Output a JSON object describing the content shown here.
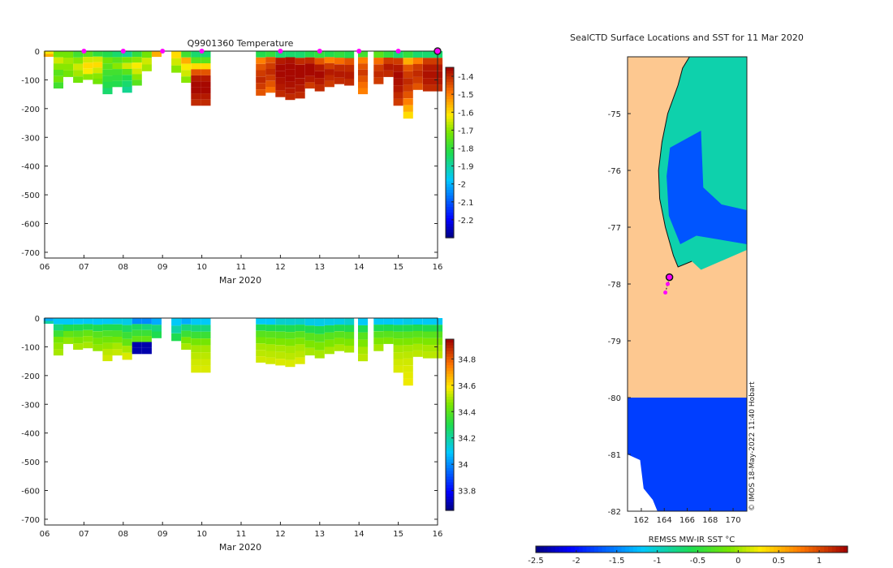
{
  "chart_data": [
    {
      "type": "heatmap",
      "title": "Q9901360  Temperature",
      "xlabel": "Mar 2020",
      "x_ticks": [
        "06",
        "07",
        "08",
        "09",
        "10",
        "11",
        "12",
        "13",
        "14",
        "15",
        "16"
      ],
      "xlim": [
        6,
        16
      ],
      "ylim": [
        -720,
        0
      ],
      "y_ticks": [
        0,
        -100,
        -200,
        -300,
        -400,
        -500,
        -600,
        -700
      ],
      "colorbar": {
        "min": -2.3,
        "max": -1.35,
        "ticks": [
          -1.4,
          -1.5,
          -1.6,
          -1.7,
          -1.8,
          -1.9,
          -2,
          -2.1,
          -2.2
        ]
      },
      "surface_markers": [
        7,
        8,
        9,
        10,
        12,
        13,
        14,
        15
      ],
      "last_marker": 16,
      "profiles": [
        {
          "day": 6.1,
          "depth": 20,
          "values": [
            -1.62,
            -1.55
          ]
        },
        {
          "day": 6.35,
          "depth": 130,
          "values": [
            -1.72,
            -1.65,
            -1.7,
            -1.75,
            -1.72,
            -1.78
          ]
        },
        {
          "day": 6.6,
          "depth": 90,
          "values": [
            -1.72,
            -1.68,
            -1.7,
            -1.72
          ]
        },
        {
          "day": 6.85,
          "depth": 110,
          "values": [
            -1.78,
            -1.7,
            -1.65,
            -1.68,
            -1.72
          ]
        },
        {
          "day": 7.1,
          "depth": 100,
          "values": [
            -1.75,
            -1.65,
            -1.6,
            -1.62,
            -1.7
          ]
        },
        {
          "day": 7.35,
          "depth": 115,
          "values": [
            -1.8,
            -1.65,
            -1.6,
            -1.65,
            -1.7,
            -1.72
          ]
        },
        {
          "day": 7.6,
          "depth": 150,
          "values": [
            -1.82,
            -1.72,
            -1.75,
            -1.78,
            -1.8,
            -1.82,
            -1.85
          ]
        },
        {
          "day": 7.85,
          "depth": 125,
          "values": [
            -1.85,
            -1.75,
            -1.7,
            -1.78,
            -1.8,
            -1.82
          ]
        },
        {
          "day": 8.1,
          "depth": 145,
          "values": [
            -1.88,
            -1.72,
            -1.65,
            -1.75,
            -1.82,
            -1.85,
            -1.88
          ]
        },
        {
          "day": 8.35,
          "depth": 120,
          "values": [
            -1.8,
            -1.7,
            -1.62,
            -1.65,
            -1.7,
            -1.75
          ]
        },
        {
          "day": 8.6,
          "depth": 70,
          "values": [
            -1.72,
            -1.65,
            -1.68
          ]
        },
        {
          "day": 8.85,
          "depth": 20,
          "values": [
            -1.55
          ]
        },
        {
          "day": 9.35,
          "depth": 75,
          "values": [
            -1.6,
            -1.65,
            -1.7
          ]
        },
        {
          "day": 9.6,
          "depth": 110,
          "values": [
            -1.78,
            -1.55,
            -1.62,
            -1.65,
            -1.7
          ]
        },
        {
          "day": 9.85,
          "depth": 190,
          "values": [
            -1.85,
            -1.75,
            -1.6,
            -1.45,
            -1.38,
            -1.36,
            -1.36,
            -1.38,
            -1.4
          ]
        },
        {
          "day": 10.1,
          "depth": 190,
          "values": [
            -1.85,
            -1.75,
            -1.6,
            -1.45,
            -1.38,
            -1.36,
            -1.36,
            -1.38,
            -1.4
          ]
        },
        {
          "day": 11.5,
          "depth": 155,
          "values": [
            -1.82,
            -1.5,
            -1.45,
            -1.42,
            -1.4,
            -1.42,
            -1.45
          ]
        },
        {
          "day": 11.75,
          "depth": 145,
          "values": [
            -1.8,
            -1.45,
            -1.42,
            -1.4,
            -1.42,
            -1.45,
            -1.48
          ]
        },
        {
          "day": 12.0,
          "depth": 160,
          "values": [
            -1.85,
            -1.38,
            -1.36,
            -1.36,
            -1.37,
            -1.38,
            -1.4
          ]
        },
        {
          "day": 12.25,
          "depth": 170,
          "values": [
            -1.85,
            -1.37,
            -1.36,
            -1.36,
            -1.36,
            -1.37,
            -1.38,
            -1.4
          ]
        },
        {
          "day": 12.5,
          "depth": 165,
          "values": [
            -1.85,
            -1.4,
            -1.36,
            -1.36,
            -1.37,
            -1.38,
            -1.4
          ]
        },
        {
          "day": 12.75,
          "depth": 130,
          "values": [
            -1.82,
            -1.4,
            -1.36,
            -1.36,
            -1.38,
            -1.42
          ]
        },
        {
          "day": 13.0,
          "depth": 140,
          "values": [
            -1.8,
            -1.45,
            -1.38,
            -1.36,
            -1.38,
            -1.4
          ]
        },
        {
          "day": 13.25,
          "depth": 125,
          "values": [
            -1.82,
            -1.5,
            -1.42,
            -1.38,
            -1.4,
            -1.42
          ]
        },
        {
          "day": 13.5,
          "depth": 115,
          "values": [
            -1.8,
            -1.48,
            -1.4,
            -1.38,
            -1.4
          ]
        },
        {
          "day": 13.75,
          "depth": 120,
          "values": [
            -1.82,
            -1.45,
            -1.4,
            -1.38,
            -1.4
          ]
        },
        {
          "day": 14.1,
          "depth": 150,
          "values": [
            -1.78,
            -1.5,
            -1.45,
            -1.42,
            -1.45,
            -1.48,
            -1.5
          ]
        },
        {
          "day": 14.5,
          "depth": 115,
          "values": [
            -1.75,
            -1.48,
            -1.42,
            -1.4,
            -1.42
          ]
        },
        {
          "day": 14.75,
          "depth": 90,
          "values": [
            -1.8,
            -1.42,
            -1.38,
            -1.4
          ]
        },
        {
          "day": 15.0,
          "depth": 190,
          "values": [
            -1.85,
            -1.42,
            -1.38,
            -1.36,
            -1.37,
            -1.38,
            -1.4,
            -1.42
          ]
        },
        {
          "day": 15.25,
          "depth": 235,
          "values": [
            -1.8,
            -1.55,
            -1.45,
            -1.42,
            -1.4,
            -1.42,
            -1.45,
            -1.5,
            -1.55,
            -1.6
          ]
        },
        {
          "day": 15.5,
          "depth": 135,
          "values": [
            -1.85,
            -1.5,
            -1.42,
            -1.4,
            -1.42,
            -1.45
          ]
        },
        {
          "day": 15.75,
          "depth": 140,
          "values": [
            -1.85,
            -1.42,
            -1.38,
            -1.37,
            -1.38,
            -1.4
          ]
        },
        {
          "day": 16.0,
          "depth": 140,
          "values": [
            -1.85,
            -1.42,
            -1.38,
            -1.37,
            -1.38,
            -1.4
          ]
        }
      ]
    },
    {
      "type": "heatmap",
      "title": "",
      "xlabel": "Mar 2020",
      "x_ticks": [
        "06",
        "07",
        "08",
        "09",
        "10",
        "11",
        "12",
        "13",
        "14",
        "15",
        "16"
      ],
      "xlim": [
        6,
        16
      ],
      "ylim": [
        -720,
        0
      ],
      "y_ticks": [
        0,
        -100,
        -200,
        -300,
        -400,
        -500,
        -600,
        -700
      ],
      "colorbar": {
        "min": 33.65,
        "max": 34.95,
        "ticks": [
          34.8,
          34.6,
          34.4,
          34.2,
          34,
          33.8
        ]
      },
      "profiles": [
        {
          "day": 6.1,
          "depth": 20,
          "values": [
            34.05,
            34.2
          ]
        },
        {
          "day": 6.35,
          "depth": 130,
          "values": [
            34.1,
            34.25,
            34.35,
            34.45,
            34.48,
            34.5
          ]
        },
        {
          "day": 6.6,
          "depth": 90,
          "values": [
            34.1,
            34.3,
            34.42,
            34.48
          ]
        },
        {
          "day": 6.85,
          "depth": 110,
          "values": [
            34.1,
            34.3,
            34.4,
            34.46,
            34.5
          ]
        },
        {
          "day": 7.1,
          "depth": 105,
          "values": [
            34.1,
            34.3,
            34.42,
            34.47,
            34.5
          ]
        },
        {
          "day": 7.35,
          "depth": 115,
          "values": [
            34.1,
            34.3,
            34.4,
            34.45,
            34.48
          ]
        },
        {
          "day": 7.6,
          "depth": 150,
          "values": [
            34.1,
            34.3,
            34.38,
            34.44,
            34.48,
            34.52,
            34.54
          ]
        },
        {
          "day": 7.85,
          "depth": 130,
          "values": [
            34.12,
            34.3,
            34.38,
            34.45,
            34.5,
            34.53
          ]
        },
        {
          "day": 8.1,
          "depth": 145,
          "values": [
            34.12,
            34.28,
            34.35,
            34.42,
            34.5,
            34.55
          ]
        },
        {
          "day": 8.35,
          "depth": 125,
          "values": [
            34.0,
            34.28,
            34.35,
            34.42,
            33.7,
            33.7
          ]
        },
        {
          "day": 8.6,
          "depth": 125,
          "values": [
            34.0,
            34.25,
            34.35,
            34.42,
            33.7,
            33.7
          ]
        },
        {
          "day": 8.85,
          "depth": 70,
          "values": [
            34.05,
            34.25,
            34.3
          ]
        },
        {
          "day": 9.35,
          "depth": 80,
          "values": [
            34.1,
            34.2,
            34.3
          ]
        },
        {
          "day": 9.6,
          "depth": 110,
          "values": [
            34.05,
            34.25,
            34.35,
            34.45,
            34.5
          ]
        },
        {
          "day": 9.85,
          "depth": 190,
          "values": [
            34.1,
            34.25,
            34.35,
            34.45,
            34.5,
            34.52,
            34.54,
            34.55
          ]
        },
        {
          "day": 10.1,
          "depth": 190,
          "values": [
            34.1,
            34.25,
            34.35,
            34.45,
            34.5,
            34.52,
            34.54,
            34.55
          ]
        },
        {
          "day": 11.5,
          "depth": 155,
          "values": [
            34.1,
            34.3,
            34.4,
            34.45,
            34.5,
            34.52,
            34.54
          ]
        },
        {
          "day": 11.75,
          "depth": 160,
          "values": [
            34.1,
            34.3,
            34.4,
            34.45,
            34.5,
            34.52,
            34.54
          ]
        },
        {
          "day": 12.0,
          "depth": 165,
          "values": [
            34.15,
            34.3,
            34.4,
            34.46,
            34.5,
            34.52,
            34.55
          ]
        },
        {
          "day": 12.25,
          "depth": 170,
          "values": [
            34.15,
            34.3,
            34.4,
            34.46,
            34.5,
            34.52,
            34.55
          ]
        },
        {
          "day": 12.5,
          "depth": 160,
          "values": [
            34.15,
            34.3,
            34.4,
            34.46,
            34.5,
            34.52,
            34.55
          ]
        },
        {
          "day": 12.75,
          "depth": 130,
          "values": [
            34.12,
            34.3,
            34.4,
            34.46,
            34.5
          ]
        },
        {
          "day": 13.0,
          "depth": 140,
          "values": [
            34.12,
            34.3,
            34.4,
            34.46,
            34.5
          ]
        },
        {
          "day": 13.25,
          "depth": 125,
          "values": [
            34.12,
            34.3,
            34.4,
            34.46,
            34.5
          ]
        },
        {
          "day": 13.5,
          "depth": 115,
          "values": [
            34.12,
            34.3,
            34.4,
            34.46,
            34.5
          ]
        },
        {
          "day": 13.75,
          "depth": 120,
          "values": [
            34.15,
            34.3,
            34.4,
            34.46,
            34.5
          ]
        },
        {
          "day": 14.1,
          "depth": 150,
          "values": [
            34.1,
            34.3,
            34.4,
            34.46,
            34.5,
            34.52
          ]
        },
        {
          "day": 14.5,
          "depth": 115,
          "values": [
            34.1,
            34.3,
            34.4,
            34.46,
            34.5
          ]
        },
        {
          "day": 14.75,
          "depth": 90,
          "values": [
            34.1,
            34.3,
            34.4,
            34.46
          ]
        },
        {
          "day": 15.0,
          "depth": 190,
          "values": [
            34.1,
            34.3,
            34.4,
            34.46,
            34.5,
            34.52,
            34.54,
            34.55
          ]
        },
        {
          "day": 15.25,
          "depth": 235,
          "values": [
            34.12,
            34.3,
            34.4,
            34.46,
            34.5,
            34.52,
            34.54,
            34.55,
            34.56,
            34.57
          ]
        },
        {
          "day": 15.5,
          "depth": 135,
          "values": [
            34.1,
            34.3,
            34.4,
            34.46,
            34.5,
            34.52
          ]
        },
        {
          "day": 15.75,
          "depth": 140,
          "values": [
            34.1,
            34.3,
            34.4,
            34.46,
            34.5,
            34.52
          ]
        },
        {
          "day": 16.0,
          "depth": 140,
          "values": [
            34.1,
            34.3,
            34.4,
            34.46,
            34.5,
            34.52
          ]
        }
      ]
    },
    {
      "type": "heatmap",
      "title": "SealCTD Surface Locations and SST for 11 Mar 2020",
      "xlabel": "",
      "ylabel": "",
      "xlim": [
        160.8,
        171.2
      ],
      "ylim": [
        -82,
        -74.0
      ],
      "x_ticks": [
        162,
        164,
        166,
        168,
        170
      ],
      "y_ticks": [
        -75,
        -76,
        -77,
        -78,
        -79,
        -80,
        -81,
        -82
      ],
      "colorbar_label": "REMSS MW-IR SST °C",
      "colorbar": {
        "min": -2.5,
        "max": 1.35,
        "ticks": [
          -2.5,
          -2,
          -1.5,
          -1,
          -0.5,
          0,
          0.5,
          1
        ]
      },
      "credit": "© IMOS 18-May-2022 11:40 Hobart",
      "land_color": "#fdc890",
      "water_low": -1.7,
      "water_mid": -0.9,
      "southern_region_value": -1.8,
      "track": [
        [
          164.1,
          -78.15
        ],
        [
          164.3,
          -78.0
        ],
        [
          164.45,
          -77.9
        ]
      ],
      "final_position": [
        164.45,
        -77.88
      ]
    }
  ]
}
